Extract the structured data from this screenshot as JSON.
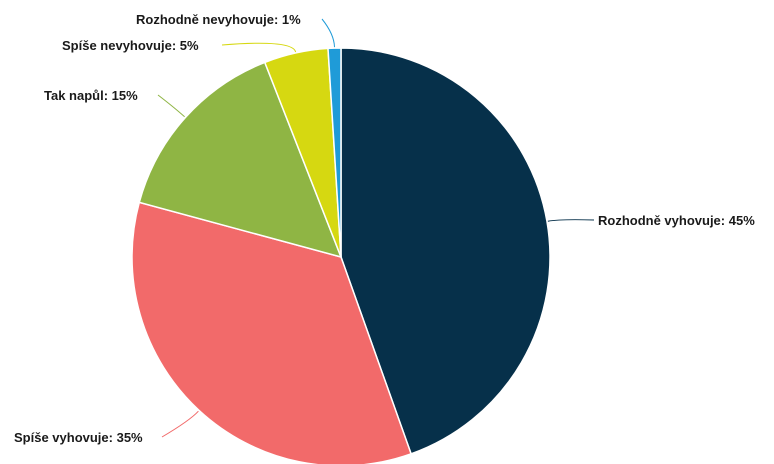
{
  "chart_data": {
    "type": "pie",
    "title": "",
    "start": "12 o'clock, clockwise",
    "slices": [
      {
        "label": "Rozhodně vyhovuje",
        "value": 45,
        "display": "Rozhodně vyhovuje: 45%",
        "color": "#06304a"
      },
      {
        "label": "Spíše vyhovuje",
        "value": 35,
        "display": "Spíše vyhovuje: 35%",
        "color": "#f26a6a"
      },
      {
        "label": "Tak napůl",
        "value": 15,
        "display": "Tak napůl: 15%",
        "color": "#8fb544"
      },
      {
        "label": "Spíše nevyhovuje",
        "value": 5,
        "display": "Spíše nevyhovuje: 5%",
        "color": "#d6d811"
      },
      {
        "label": "Rozhodně nevyhovuje",
        "value": 1,
        "display": "Rozhodně nevyhovuje: 1%",
        "color": "#1f9bd8"
      }
    ]
  }
}
